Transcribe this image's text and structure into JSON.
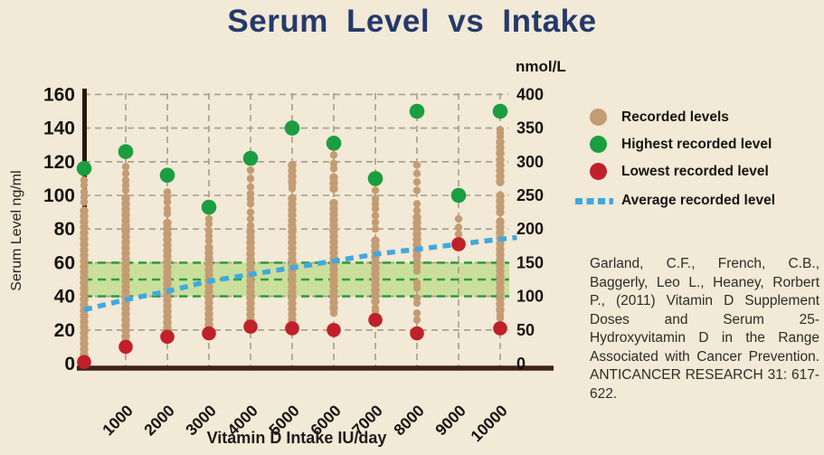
{
  "title": "Serum Level vs Intake",
  "citation": "Garland, C.F., French, C.B., Baggerly, Leo L., Heaney, Rorbert P., (2011) Vitamin D Supplement Doses and Serum 25-Hydroxyvitamin D in the Range Associated with Cancer Prevention. ANTICANCER RESEARCH 31: 617-622.",
  "colors": {
    "background": "#f2e9d6",
    "title_color": "#25396b",
    "recorded": "#c49c73",
    "highest": "#1a9e40",
    "lowest": "#c0202a",
    "average": "#41a8e0",
    "grid": "#a69d8b",
    "band_fill": "#cbdf9d",
    "band_line": "#2f9f3f",
    "axis_left": "#27190d",
    "axis_bottom": "#3f2419",
    "text": "#151310"
  },
  "legend": {
    "items": [
      {
        "label": "Recorded levels",
        "marker": "dot",
        "color": "#c49c73"
      },
      {
        "label": "Highest recorded level",
        "marker": "dot",
        "color": "#1a9e40"
      },
      {
        "label": "Lowest recorded level",
        "marker": "dot",
        "color": "#c0202a"
      },
      {
        "label": "Average recorded level",
        "marker": "dashes",
        "color": "#41a8e0"
      }
    ]
  },
  "chart_data": {
    "type": "scatter",
    "title": "Serum Level vs Intake",
    "xlabel": "Vitamin D Intake IU/day",
    "ylabel_left": "Serum Level ng/ml",
    "ylabel_right": "nmol/L",
    "x_ticks": [
      1000,
      2000,
      3000,
      4000,
      5000,
      6000,
      7000,
      8000,
      9000,
      10000
    ],
    "y_left_ticks": [
      0,
      20,
      40,
      60,
      80,
      100,
      120,
      140,
      160
    ],
    "y_right_ticks": [
      0,
      50,
      100,
      150,
      200,
      250,
      300,
      350,
      400
    ],
    "y_left_range": [
      0,
      160
    ],
    "y_right_range": [
      0,
      400
    ],
    "grid": "dashed",
    "target_band": {
      "low": 40,
      "mid": 50,
      "high": 60
    },
    "columns": [
      {
        "intake": 0,
        "highest": 116,
        "lowest": 1,
        "segments": [
          [
            2,
            68
          ],
          [
            71,
            78
          ],
          [
            81,
            93
          ]
        ],
        "dots": [
          96,
          99,
          102,
          106,
          109
        ]
      },
      {
        "intake": 1000,
        "highest": 126,
        "lowest": 10,
        "segments": [
          [
            13,
            100
          ]
        ],
        "dots": [
          103,
          106,
          109,
          113,
          117
        ]
      },
      {
        "intake": 2000,
        "highest": 112,
        "lowest": 16,
        "segments": [
          [
            18,
            86
          ]
        ],
        "dots": [
          89,
          92,
          96,
          99,
          102
        ]
      },
      {
        "intake": 3000,
        "highest": 93,
        "lowest": 18,
        "segments": [
          [
            23,
            70
          ]
        ],
        "dots": [
          73,
          76,
          79,
          83,
          86
        ]
      },
      {
        "intake": 4000,
        "highest": 122,
        "lowest": 22,
        "segments": [
          [
            26,
            79
          ]
        ],
        "dots": [
          82,
          86,
          90,
          95,
          98,
          101,
          105,
          110,
          115
        ]
      },
      {
        "intake": 5000,
        "highest": 140,
        "lowest": 21,
        "segments": [
          [
            26,
            101
          ],
          [
            108,
            121
          ]
        ],
        "dots": [
          104,
          106
        ]
      },
      {
        "intake": 6000,
        "highest": 131,
        "lowest": 20,
        "segments": [
          [
            33,
            98
          ],
          [
            104,
            113
          ]
        ],
        "dots": [
          30,
          116,
          119,
          124
        ]
      },
      {
        "intake": 7000,
        "highest": 110,
        "lowest": 26,
        "segments": [
          [
            37,
            76
          ]
        ],
        "dots": [
          31,
          33,
          80,
          84,
          88,
          92,
          95,
          98,
          103
        ]
      },
      {
        "intake": 8000,
        "highest": 150,
        "lowest": 18,
        "segments": [
          [
            64,
            87
          ]
        ],
        "dots": [
          26,
          30,
          36,
          39,
          45,
          48,
          55,
          58,
          61,
          91,
          95,
          103,
          108,
          113,
          118
        ]
      },
      {
        "intake": 9000,
        "highest": 100,
        "lowest": 71,
        "segments": [],
        "dots": [
          77,
          81,
          86
        ]
      },
      {
        "intake": 10000,
        "highest": 150,
        "lowest": 21,
        "segments": [
          [
            32,
            66
          ],
          [
            68,
            86
          ],
          [
            90,
            100
          ],
          [
            108,
            122
          ],
          [
            125,
            132
          ]
        ],
        "dots": [
          27,
          29,
          135,
          137,
          139
        ]
      }
    ],
    "average_line": {
      "x": [
        0,
        1000,
        2000,
        3000,
        4000,
        5000,
        6000,
        7000,
        8000,
        9000,
        10000,
        10400
      ],
      "y": [
        32,
        38,
        43,
        49,
        53,
        57,
        61,
        65,
        68,
        71,
        74,
        75
      ]
    }
  }
}
